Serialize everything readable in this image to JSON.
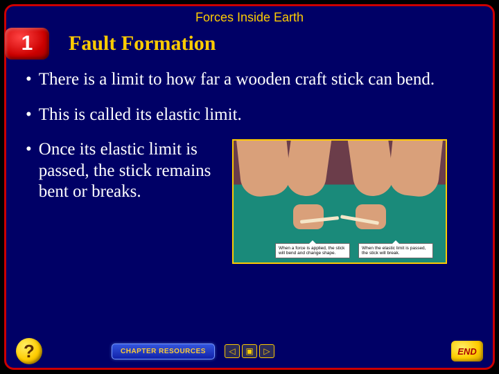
{
  "colors": {
    "slide_bg": "#000066",
    "border": "#cc0000",
    "accent": "#ffcc00",
    "text": "#ffffff",
    "badge_bg": "#cc0000",
    "badge_text": "#ffffff",
    "photo_border": "#ffcc00",
    "photo_top": "#6b3d4a",
    "photo_surface": "#1a8a7a",
    "skin": "#d9a07a",
    "stick": "#f5e6c8"
  },
  "typography": {
    "header_fontsize": 18,
    "title_fontsize": 30,
    "body_fontsize": 25,
    "body_family": "Times New Roman"
  },
  "header": {
    "supertitle": "Forces Inside Earth"
  },
  "section": {
    "number": "1",
    "title": "Fault Formation"
  },
  "bullets": [
    "There is a limit to how far a wooden craft stick can bend.",
    "This is called its elastic limit.",
    "Once its elastic limit is passed, the stick remains bent or breaks."
  ],
  "photo": {
    "caption1": "When a force is applied, the stick will bend and change shape.",
    "caption2": "When the elastic limit is passed, the stick will break."
  },
  "footer": {
    "help_label": "?",
    "chapter_label": "CHAPTER RESOURCES",
    "end_label": "END",
    "nav": {
      "prev": "◁",
      "menu": "▣",
      "next": "▷"
    }
  }
}
